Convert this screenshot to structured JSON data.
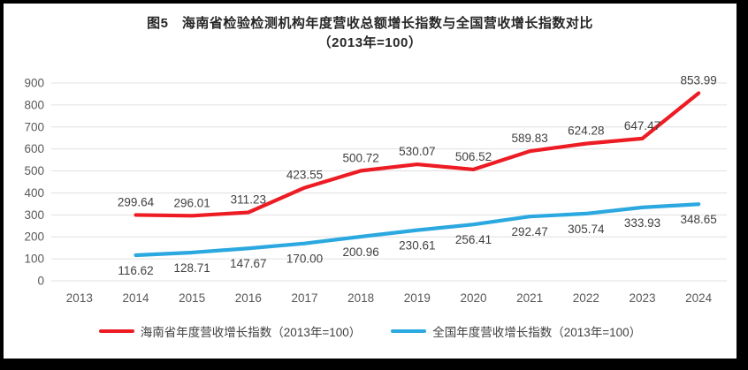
{
  "title": {
    "line1": "图5　海南省检验检测机构年度营收总额增长指数与全国营收增长指数对比",
    "line2": "（2013年=100）"
  },
  "colors": {
    "hainan_line": "#ED1C24",
    "national_line": "#2BA8E0",
    "gridline": "#E0E0E0",
    "tick_label": "#595959",
    "data_label": "#404040",
    "frame_border": "#000000"
  },
  "chart_data": {
    "type": "line",
    "title": "图5 海南省检验检测机构年度营收总额增长指数与全国营收增长指数对比（2013年=100）",
    "categories": [
      "2013",
      "2014",
      "2015",
      "2016",
      "2017",
      "2018",
      "2019",
      "2020",
      "2021",
      "2022",
      "2023",
      "2024"
    ],
    "series": [
      {
        "name": "海南省年度营收增长指数（2013年=100）",
        "color": "#ED1C24",
        "label_position": "above",
        "values": [
          null,
          299.64,
          296.01,
          311.23,
          423.55,
          500.72,
          530.07,
          506.52,
          589.83,
          624.28,
          647.47,
          853.99
        ]
      },
      {
        "name": "全国年度营收增长指数（2013年=100）",
        "color": "#2BA8E0",
        "label_position": "below",
        "values": [
          null,
          116.62,
          128.71,
          147.67,
          170.0,
          200.96,
          230.61,
          256.41,
          292.47,
          305.74,
          333.93,
          348.65
        ]
      }
    ],
    "xlabel": "",
    "ylabel": "",
    "ylim": [
      0,
      900
    ],
    "ytick_step": 100,
    "yticks": [
      0,
      100,
      200,
      300,
      400,
      500,
      600,
      700,
      800,
      900
    ],
    "grid": "horizontal",
    "legend_position": "bottom",
    "data_labels_decimals": 2
  }
}
